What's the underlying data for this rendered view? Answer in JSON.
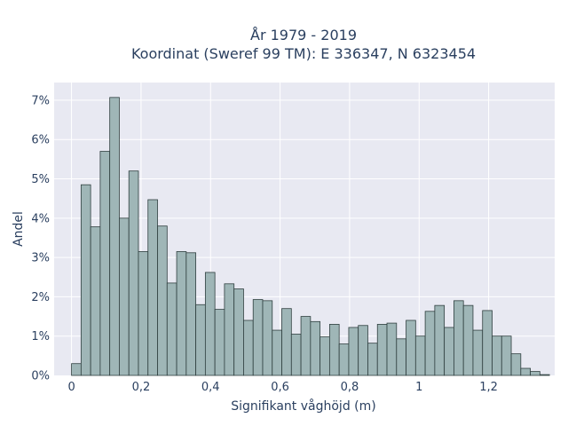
{
  "chart_data": {
    "type": "bar",
    "title_line1": "År 1979 - 2019",
    "title_line2": "Koordinat (Sweref 99 TM): E 336347, N 6323454",
    "xlabel": "Signifikant våghöjd (m)",
    "ylabel": "Andel",
    "xlim": [
      -0.05,
      1.39
    ],
    "ylim": [
      0,
      0.0745
    ],
    "x_ticks": [
      {
        "value": 0,
        "label": "0"
      },
      {
        "value": 0.2,
        "label": "0,2"
      },
      {
        "value": 0.4,
        "label": "0,4"
      },
      {
        "value": 0.6,
        "label": "0,6"
      },
      {
        "value": 0.8,
        "label": "0,8"
      },
      {
        "value": 1,
        "label": "1"
      },
      {
        "value": 1.2,
        "label": "1,2"
      }
    ],
    "y_ticks": [
      {
        "value": 0,
        "label": "0%"
      },
      {
        "value": 0.01,
        "label": "1%"
      },
      {
        "value": 0.02,
        "label": "2%"
      },
      {
        "value": 0.03,
        "label": "3%"
      },
      {
        "value": 0.04,
        "label": "4%"
      },
      {
        "value": 0.05,
        "label": "5%"
      },
      {
        "value": 0.06,
        "label": "6%"
      },
      {
        "value": 0.07,
        "label": "7%"
      }
    ],
    "grid": true,
    "bin_width": 0.0275,
    "bin_start": 0.0,
    "values": [
      0.003,
      0.0485,
      0.0378,
      0.057,
      0.0707,
      0.04,
      0.052,
      0.0315,
      0.0447,
      0.038,
      0.0235,
      0.0315,
      0.0312,
      0.018,
      0.0262,
      0.0168,
      0.0233,
      0.022,
      0.014,
      0.0193,
      0.019,
      0.0115,
      0.017,
      0.0105,
      0.015,
      0.0137,
      0.0098,
      0.013,
      0.008,
      0.0122,
      0.0127,
      0.0082,
      0.013,
      0.0133,
      0.0093,
      0.014,
      0.01,
      0.0163,
      0.0178,
      0.0122,
      0.019,
      0.0178,
      0.0115,
      0.0165,
      0.01,
      0.01,
      0.0055,
      0.0018,
      0.001,
      0.0002
    ],
    "colors": {
      "bar_fill": "#9fb6b7",
      "bar_stroke": "#2f3f3f",
      "plot_bg": "#e8e9f2",
      "grid": "#ffffff",
      "text": "#2a3f5f"
    }
  }
}
